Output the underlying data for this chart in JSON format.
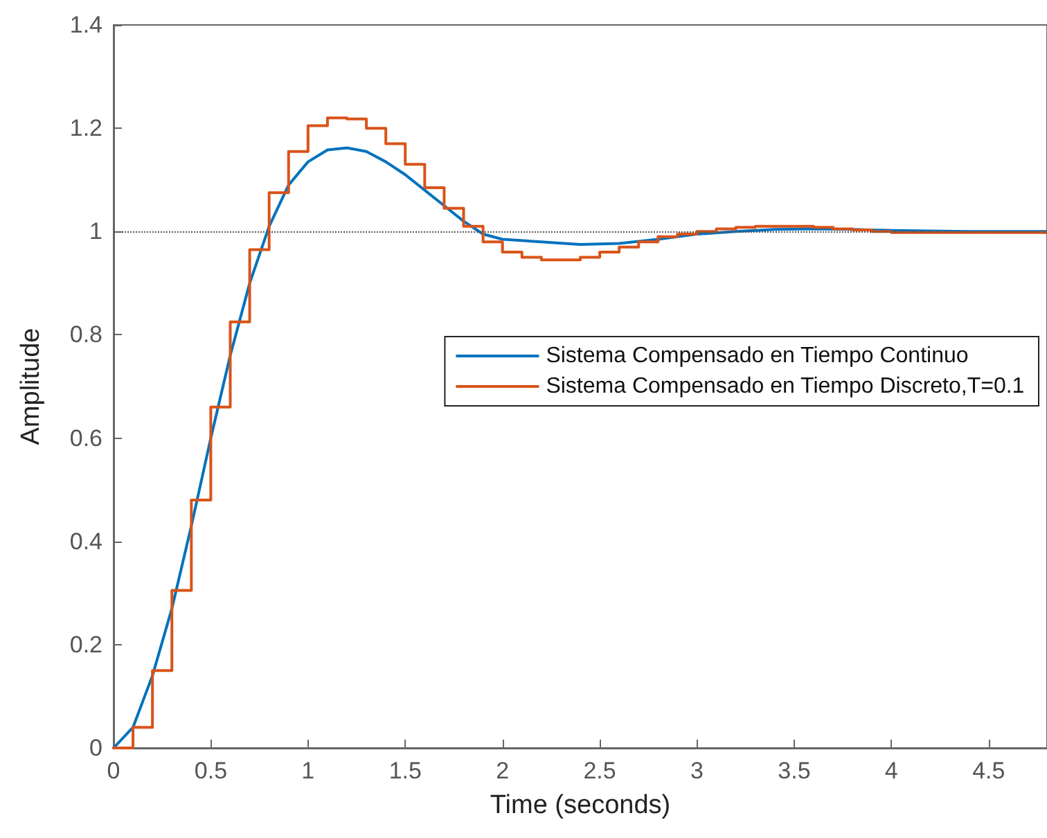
{
  "chart_data": {
    "type": "line",
    "xlabel": "Time (seconds)",
    "ylabel": "Amplitude",
    "xlim": [
      0,
      4.8
    ],
    "xticks": [
      0,
      0.5,
      1,
      1.5,
      2,
      2.5,
      3,
      3.5,
      4,
      4.5
    ],
    "ylim": [
      0,
      1.4
    ],
    "yticks": [
      0,
      0.2,
      0.4,
      0.6,
      0.8,
      1,
      1.2,
      1.4
    ],
    "grid": false,
    "legend": "right",
    "marker": "none",
    "line_style": "solid",
    "ref_lines": [
      {
        "axis": "y",
        "value": 1,
        "color": "#555555",
        "line_style": "dotted"
      }
    ],
    "series": [
      {
        "name": "Sistema Compensado en Tiempo Continuo",
        "color": "#0072bd",
        "x": [
          0,
          0.1,
          0.2,
          0.3,
          0.4,
          0.5,
          0.6,
          0.7,
          0.8,
          0.9,
          1.0,
          1.1,
          1.2,
          1.3,
          1.4,
          1.5,
          1.6,
          1.7,
          1.8,
          1.9,
          2.0,
          2.2,
          2.4,
          2.6,
          2.8,
          3.0,
          3.2,
          3.4,
          3.6,
          3.8,
          4.0,
          4.4,
          4.8
        ],
        "values": [
          0,
          0.04,
          0.14,
          0.27,
          0.43,
          0.6,
          0.76,
          0.9,
          1.01,
          1.09,
          1.135,
          1.158,
          1.162,
          1.155,
          1.135,
          1.11,
          1.08,
          1.05,
          1.02,
          0.995,
          0.985,
          0.98,
          0.975,
          0.977,
          0.985,
          0.995,
          1.0,
          1.004,
          1.005,
          1.004,
          1.002,
          1.0,
          1.0
        ]
      },
      {
        "name": "Sistema Compensado en Tiempo Discreto,T=0.1",
        "type": "step",
        "color": "#d95319",
        "x": [
          0,
          0.1,
          0.2,
          0.3,
          0.4,
          0.5,
          0.6,
          0.7,
          0.8,
          0.9,
          1.0,
          1.1,
          1.2,
          1.3,
          1.4,
          1.5,
          1.6,
          1.7,
          1.8,
          1.9,
          2.0,
          2.1,
          2.2,
          2.3,
          2.4,
          2.5,
          2.6,
          2.7,
          2.8,
          2.9,
          3.0,
          3.1,
          3.2,
          3.3,
          3.4,
          3.5,
          3.6,
          3.7,
          3.8,
          3.9,
          4.0,
          4.2,
          4.4,
          4.6,
          4.8
        ],
        "values": [
          0,
          0.04,
          0.15,
          0.305,
          0.48,
          0.66,
          0.825,
          0.965,
          1.075,
          1.155,
          1.205,
          1.22,
          1.218,
          1.2,
          1.17,
          1.13,
          1.085,
          1.045,
          1.01,
          0.98,
          0.96,
          0.95,
          0.945,
          0.945,
          0.95,
          0.96,
          0.97,
          0.98,
          0.99,
          0.995,
          1.0,
          1.005,
          1.008,
          1.01,
          1.01,
          1.01,
          1.008,
          1.005,
          1.003,
          1.0,
          0.998,
          0.998,
          0.998,
          0.998,
          0.998
        ]
      }
    ]
  }
}
